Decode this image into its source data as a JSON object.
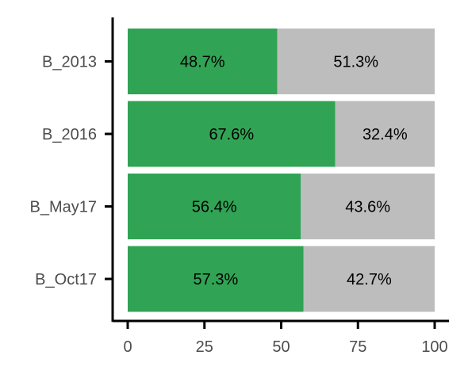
{
  "chart_data": {
    "type": "bar",
    "orientation": "horizontal",
    "stacked": true,
    "categories": [
      "B_2013",
      "B_2016",
      "B_May17",
      "B_Oct17"
    ],
    "series": [
      {
        "values": [
          48.7,
          67.6,
          56.4,
          57.3
        ],
        "labels": [
          "48.7%",
          "67.6%",
          "56.4%",
          "57.3%"
        ],
        "color": "#31a354"
      },
      {
        "values": [
          51.3,
          32.4,
          43.6,
          42.7
        ],
        "labels": [
          "51.3%",
          "32.4%",
          "43.6%",
          "42.7%"
        ],
        "color": "#bdbdbd"
      }
    ],
    "x_ticks": [
      "0",
      "25",
      "50",
      "75",
      "100"
    ],
    "xlim": [
      0,
      100
    ],
    "title": "",
    "xlabel": "",
    "ylabel": "",
    "grid": false,
    "legend": "none"
  }
}
